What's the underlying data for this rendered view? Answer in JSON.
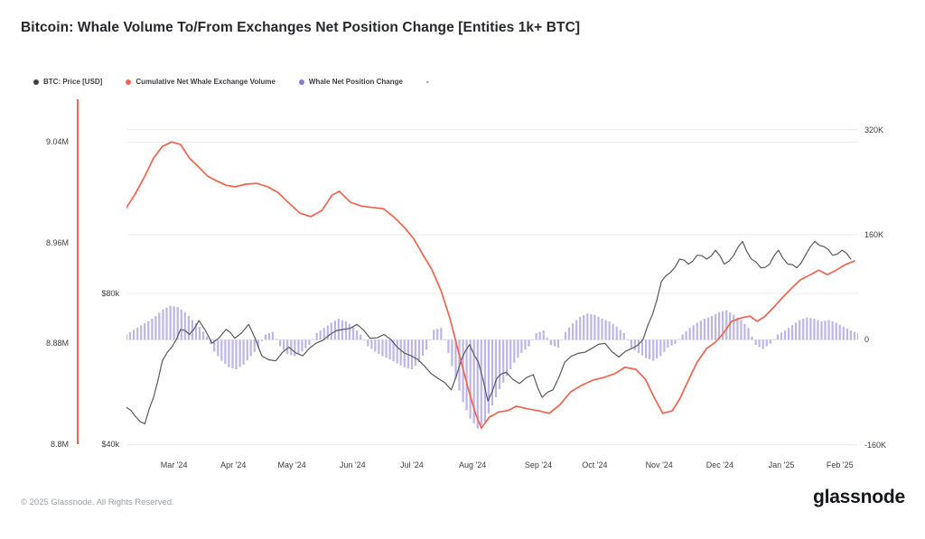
{
  "title": "Bitcoin: Whale Volume To/From Exchanges Net Position Change [Entities 1k+ BTC]",
  "legend": {
    "items": [
      {
        "label": "BTC: Price [USD]",
        "color": "#404040"
      },
      {
        "label": "Cumulative Net Whale Exchange Volume",
        "color": "#f4624d"
      },
      {
        "label": "Whale Net Position Change",
        "color": "#8679d9"
      },
      {
        "label": "-",
        "color": ""
      }
    ]
  },
  "footer": {
    "copyright": "© 2025 Glassnode. All Rights Reserved.",
    "brand": "glassnode"
  },
  "chart_data": {
    "type": "mixed",
    "title": "Bitcoin: Whale Volume To/From Exchanges Net Position Change [Entities 1k+ BTC]",
    "grid": "horizontal",
    "legend_position": "top-left",
    "x_ticks": [
      {
        "label": "Mar '24",
        "x": 0.065
      },
      {
        "label": "Apr '24",
        "x": 0.146
      },
      {
        "label": "May '24",
        "x": 0.226
      },
      {
        "label": "Jun '24",
        "x": 0.309
      },
      {
        "label": "Jul '24",
        "x": 0.39
      },
      {
        "label": "Aug '24",
        "x": 0.473
      },
      {
        "label": "Sep '24",
        "x": 0.563
      },
      {
        "label": "Oct '24",
        "x": 0.64
      },
      {
        "label": "Nov '24",
        "x": 0.728
      },
      {
        "label": "Dec '24",
        "x": 0.811
      },
      {
        "label": "Jan '25",
        "x": 0.895
      },
      {
        "label": "Feb '25",
        "x": 0.975
      }
    ],
    "axes": {
      "price": {
        "min": 8.794,
        "max": 9.074,
        "ticks": [
          {
            "label": "9.04M",
            "value": 9.04
          },
          {
            "label": "8.96M",
            "value": 8.96
          },
          {
            "label": "8.88M",
            "value": 8.88
          },
          {
            "label": "8.8M",
            "value": 8.8
          }
        ]
      },
      "volume_usd": {
        "min": 38.1,
        "max": 131.5,
        "ticks": [
          {
            "label": "$80k",
            "value": 80
          },
          {
            "label": "$40k",
            "value": 40
          }
        ]
      },
      "net_position": {
        "min": -170,
        "max": 366,
        "ticks": [
          {
            "label": "320K",
            "value": 320
          },
          {
            "label": "160K",
            "value": 160
          },
          {
            "label": "0",
            "value": 0
          },
          {
            "label": "-160K",
            "value": -160
          }
        ]
      }
    },
    "gridlines": [
      {
        "axis": "net_position",
        "value": 320
      },
      {
        "axis": "net_position",
        "value": 160
      },
      {
        "axis": "net_position",
        "value": 0
      },
      {
        "axis": "net_position",
        "value": -160
      },
      {
        "axis": "price",
        "value": 9.04
      },
      {
        "axis": "volume_usd",
        "value": 80
      }
    ],
    "series": [
      {
        "name": "BTC: Price [USD]",
        "type": "line",
        "axis": "price",
        "color": "#595959",
        "points": [
          [
            0,
            8.829
          ],
          [
            0.012,
            8.822
          ],
          [
            0.025,
            8.816
          ],
          [
            0.037,
            8.837
          ],
          [
            0.049,
            8.866
          ],
          [
            0.062,
            8.877
          ],
          [
            0.074,
            8.891
          ],
          [
            0.086,
            8.887
          ],
          [
            0.099,
            8.898
          ],
          [
            0.117,
            8.88
          ],
          [
            0.136,
            8.891
          ],
          [
            0.148,
            8.884
          ],
          [
            0.167,
            8.895
          ],
          [
            0.185,
            8.87
          ],
          [
            0.204,
            8.866
          ],
          [
            0.222,
            8.877
          ],
          [
            0.241,
            8.87
          ],
          [
            0.259,
            8.88
          ],
          [
            0.278,
            8.887
          ],
          [
            0.296,
            8.891
          ],
          [
            0.315,
            8.895
          ],
          [
            0.333,
            8.884
          ],
          [
            0.352,
            8.887
          ],
          [
            0.37,
            8.877
          ],
          [
            0.389,
            8.87
          ],
          [
            0.407,
            8.862
          ],
          [
            0.426,
            8.852
          ],
          [
            0.444,
            8.843
          ],
          [
            0.457,
            8.866
          ],
          [
            0.469,
            8.879
          ],
          [
            0.481,
            8.865
          ],
          [
            0.494,
            8.834
          ],
          [
            0.506,
            8.852
          ],
          [
            0.519,
            8.857
          ],
          [
            0.537,
            8.848
          ],
          [
            0.556,
            8.855
          ],
          [
            0.568,
            8.837
          ],
          [
            0.583,
            8.843
          ],
          [
            0.599,
            8.865
          ],
          [
            0.617,
            8.872
          ],
          [
            0.636,
            8.876
          ],
          [
            0.654,
            8.88
          ],
          [
            0.673,
            8.869
          ],
          [
            0.691,
            8.876
          ],
          [
            0.706,
            8.883
          ],
          [
            0.719,
            8.903
          ],
          [
            0.731,
            8.929
          ],
          [
            0.743,
            8.936
          ],
          [
            0.756,
            8.947
          ],
          [
            0.768,
            8.943
          ],
          [
            0.78,
            8.95
          ],
          [
            0.793,
            8.947
          ],
          [
            0.805,
            8.954
          ],
          [
            0.817,
            8.943
          ],
          [
            0.83,
            8.95
          ],
          [
            0.842,
            8.961
          ],
          [
            0.854,
            8.947
          ],
          [
            0.867,
            8.94
          ],
          [
            0.879,
            8.943
          ],
          [
            0.891,
            8.954
          ],
          [
            0.904,
            8.943
          ],
          [
            0.916,
            8.94
          ],
          [
            0.928,
            8.95
          ],
          [
            0.941,
            8.961
          ],
          [
            0.953,
            8.957
          ],
          [
            0.965,
            8.95
          ],
          [
            0.978,
            8.954
          ],
          [
            0.99,
            8.947
          ]
        ]
      },
      {
        "name": "Cumulative Net Whale Exchange Volume",
        "type": "line",
        "axis": "volume_usd",
        "color": "#f4624d",
        "points": [
          [
            0,
            102.8
          ],
          [
            0.012,
            106.4
          ],
          [
            0.025,
            111.1
          ],
          [
            0.037,
            115.9
          ],
          [
            0.049,
            119
          ],
          [
            0.062,
            120.2
          ],
          [
            0.074,
            119.5
          ],
          [
            0.086,
            115.9
          ],
          [
            0.099,
            113.5
          ],
          [
            0.111,
            111.1
          ],
          [
            0.123,
            109.9
          ],
          [
            0.136,
            108.7
          ],
          [
            0.148,
            108.3
          ],
          [
            0.163,
            109
          ],
          [
            0.178,
            109.2
          ],
          [
            0.193,
            108.3
          ],
          [
            0.207,
            106.8
          ],
          [
            0.222,
            104
          ],
          [
            0.237,
            101.3
          ],
          [
            0.252,
            100.4
          ],
          [
            0.267,
            102
          ],
          [
            0.281,
            106.1
          ],
          [
            0.291,
            107.1
          ],
          [
            0.306,
            104.2
          ],
          [
            0.321,
            103.2
          ],
          [
            0.336,
            102.8
          ],
          [
            0.351,
            102.5
          ],
          [
            0.365,
            100.4
          ],
          [
            0.38,
            97.5
          ],
          [
            0.393,
            94.4
          ],
          [
            0.405,
            90.3
          ],
          [
            0.417,
            86.5
          ],
          [
            0.43,
            80.7
          ],
          [
            0.442,
            73.5
          ],
          [
            0.454,
            64.4
          ],
          [
            0.467,
            54.8
          ],
          [
            0.477,
            48.1
          ],
          [
            0.485,
            44.3
          ],
          [
            0.496,
            47.2
          ],
          [
            0.509,
            48.6
          ],
          [
            0.521,
            48.9
          ],
          [
            0.533,
            50.1
          ],
          [
            0.548,
            49.4
          ],
          [
            0.563,
            48.9
          ],
          [
            0.578,
            48.2
          ],
          [
            0.593,
            50.6
          ],
          [
            0.607,
            53.9
          ],
          [
            0.622,
            55.6
          ],
          [
            0.637,
            57
          ],
          [
            0.652,
            57.7
          ],
          [
            0.667,
            58.7
          ],
          [
            0.681,
            60.4
          ],
          [
            0.696,
            59.9
          ],
          [
            0.709,
            57.3
          ],
          [
            0.721,
            52.5
          ],
          [
            0.733,
            48.2
          ],
          [
            0.746,
            48.9
          ],
          [
            0.756,
            52
          ],
          [
            0.768,
            57
          ],
          [
            0.78,
            61.8
          ],
          [
            0.793,
            65.4
          ],
          [
            0.805,
            67.1
          ],
          [
            0.815,
            69.2
          ],
          [
            0.827,
            72.6
          ],
          [
            0.84,
            73.5
          ],
          [
            0.852,
            74
          ],
          [
            0.862,
            72.6
          ],
          [
            0.872,
            73.8
          ],
          [
            0.884,
            76.2
          ],
          [
            0.896,
            78.8
          ],
          [
            0.909,
            81.4
          ],
          [
            0.921,
            83.6
          ],
          [
            0.933,
            84.8
          ],
          [
            0.946,
            86.2
          ],
          [
            0.958,
            85
          ],
          [
            0.97,
            86.2
          ],
          [
            0.983,
            87.7
          ],
          [
            0.995,
            88.6
          ]
        ]
      },
      {
        "name": "Whale Net Position Change",
        "type": "bar",
        "axis": "net_position",
        "color": "#8679d9",
        "points": [
          [
            0,
            8
          ],
          [
            0.01,
            15
          ],
          [
            0.02,
            22
          ],
          [
            0.03,
            28
          ],
          [
            0.04,
            36
          ],
          [
            0.05,
            46
          ],
          [
            0.06,
            52
          ],
          [
            0.07,
            50
          ],
          [
            0.08,
            42
          ],
          [
            0.09,
            30
          ],
          [
            0.1,
            20
          ],
          [
            0.11,
            5
          ],
          [
            0.12,
            -18
          ],
          [
            0.13,
            -32
          ],
          [
            0.14,
            -42
          ],
          [
            0.15,
            -45
          ],
          [
            0.16,
            -38
          ],
          [
            0.17,
            -25
          ],
          [
            0.18,
            -12
          ],
          [
            0.19,
            8
          ],
          [
            0.2,
            12
          ],
          [
            0.21,
            -10
          ],
          [
            0.22,
            -22
          ],
          [
            0.23,
            -25
          ],
          [
            0.24,
            -18
          ],
          [
            0.25,
            -8
          ],
          [
            0.26,
            10
          ],
          [
            0.27,
            18
          ],
          [
            0.28,
            26
          ],
          [
            0.29,
            32
          ],
          [
            0.3,
            28
          ],
          [
            0.31,
            20
          ],
          [
            0.32,
            8
          ],
          [
            0.33,
            -10
          ],
          [
            0.34,
            -18
          ],
          [
            0.35,
            -25
          ],
          [
            0.36,
            -30
          ],
          [
            0.37,
            -36
          ],
          [
            0.38,
            -42
          ],
          [
            0.39,
            -45
          ],
          [
            0.4,
            -34
          ],
          [
            0.41,
            -15
          ],
          [
            0.42,
            15
          ],
          [
            0.43,
            18
          ],
          [
            0.44,
            -20
          ],
          [
            0.45,
            -60
          ],
          [
            0.46,
            -95
          ],
          [
            0.47,
            -120
          ],
          [
            0.48,
            -135
          ],
          [
            0.49,
            -125
          ],
          [
            0.5,
            -100
          ],
          [
            0.51,
            -75
          ],
          [
            0.52,
            -55
          ],
          [
            0.53,
            -35
          ],
          [
            0.54,
            -20
          ],
          [
            0.55,
            -10
          ],
          [
            0.56,
            10
          ],
          [
            0.57,
            14
          ],
          [
            0.58,
            -8
          ],
          [
            0.59,
            -12
          ],
          [
            0.6,
            12
          ],
          [
            0.61,
            25
          ],
          [
            0.62,
            35
          ],
          [
            0.63,
            40
          ],
          [
            0.64,
            38
          ],
          [
            0.65,
            32
          ],
          [
            0.66,
            28
          ],
          [
            0.67,
            20
          ],
          [
            0.68,
            10
          ],
          [
            0.69,
            -12
          ],
          [
            0.7,
            -20
          ],
          [
            0.71,
            -28
          ],
          [
            0.72,
            -32
          ],
          [
            0.73,
            -25
          ],
          [
            0.74,
            -12
          ],
          [
            0.75,
            -6
          ],
          [
            0.76,
            8
          ],
          [
            0.77,
            18
          ],
          [
            0.78,
            26
          ],
          [
            0.79,
            32
          ],
          [
            0.8,
            36
          ],
          [
            0.81,
            42
          ],
          [
            0.82,
            45
          ],
          [
            0.83,
            38
          ],
          [
            0.84,
            30
          ],
          [
            0.85,
            18
          ],
          [
            0.86,
            -8
          ],
          [
            0.87,
            -14
          ],
          [
            0.88,
            -6
          ],
          [
            0.89,
            8
          ],
          [
            0.9,
            14
          ],
          [
            0.91,
            22
          ],
          [
            0.92,
            30
          ],
          [
            0.93,
            34
          ],
          [
            0.94,
            32
          ],
          [
            0.95,
            28
          ],
          [
            0.96,
            30
          ],
          [
            0.97,
            26
          ],
          [
            0.98,
            20
          ],
          [
            0.99,
            14
          ],
          [
            1,
            10
          ]
        ]
      }
    ]
  }
}
